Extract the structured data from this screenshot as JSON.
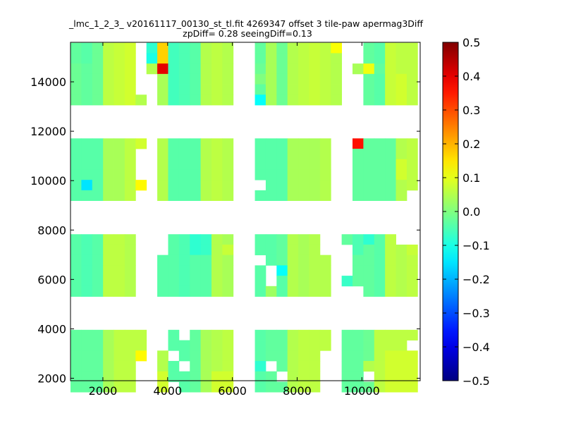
{
  "chart_data": {
    "type": "heatmap",
    "title_line1": "_lmc_1_2_3_ v20161117_00130_st_tl.fit 4269347 offset 3 tile-paw apermag3Diff",
    "title_line2": "zpDiff= 0.28 seeingDiff=0.13",
    "xlabel": "",
    "ylabel": "",
    "xlim": [
      1000,
      11800
    ],
    "ylim": [
      1900,
      15600
    ],
    "xticks": [
      2000,
      4000,
      6000,
      8000,
      10000
    ],
    "xtick_labels": [
      "2000",
      "4000",
      "6000",
      "8000",
      "10000"
    ],
    "yticks": [
      2000,
      4000,
      6000,
      8000,
      10000,
      12000,
      14000
    ],
    "ytick_labels": [
      "2000",
      "4000",
      "6000",
      "8000",
      "10000",
      "12000",
      "14000"
    ],
    "colormap": "jet",
    "colorbar": {
      "vmin": -0.5,
      "vmax": 0.5,
      "ticks": [
        0.5,
        0.4,
        0.3,
        0.2,
        0.1,
        0.0,
        -0.1,
        -0.2,
        -0.3,
        -0.4,
        -0.5
      ],
      "tick_labels": [
        "0.5",
        "0.4",
        "0.3",
        "0.2",
        "0.1",
        "0.0",
        "−0.1",
        "−0.2",
        "−0.3",
        "−0.4",
        "−0.5"
      ]
    },
    "grid": false,
    "cell_size": [
      335,
      420
    ],
    "row_bands": [
      {
        "y_start": 15580,
        "rows": 6
      },
      {
        "y_start": 11710,
        "rows": 6
      },
      {
        "y_start": 7830,
        "rows": 6
      },
      {
        "y_start": 3960,
        "rows": 6
      }
    ],
    "columns_x_start": [
      1000,
      1335,
      1670,
      2005,
      2340,
      2675,
      3010,
      3345,
      3680,
      4015,
      4350,
      4685,
      5020,
      5355,
      5690,
      6025,
      6360,
      6695,
      7030,
      7365,
      7700,
      8035,
      8370,
      8705,
      9040,
      9375,
      9710,
      10045,
      10380,
      10715,
      11050,
      11385
    ],
    "values": [
      [
        [
          -0.03,
          -0.04,
          -0.02,
          0.06,
          0.07,
          0.08,
          null,
          -0.08,
          0.17,
          -0.06,
          -0.05,
          -0.04,
          0.05,
          0.06,
          0.05,
          null,
          null,
          -0.03,
          0.04,
          -0.02,
          0.05,
          0.06,
          0.07,
          0.06,
          0.12,
          null,
          null,
          -0.03,
          -0.04,
          0.07,
          0.06,
          0.06
        ],
        [
          -0.03,
          -0.04,
          -0.02,
          0.06,
          0.07,
          0.08,
          null,
          -0.1,
          0.17,
          -0.06,
          -0.05,
          -0.04,
          0.05,
          0.06,
          0.05,
          null,
          null,
          -0.03,
          0.04,
          -0.02,
          0.05,
          0.06,
          0.07,
          0.06,
          0.05,
          null,
          null,
          -0.03,
          -0.04,
          0.07,
          0.06,
          0.06
        ],
        [
          -0.02,
          -0.03,
          -0.02,
          0.06,
          0.07,
          0.08,
          null,
          0.05,
          0.4,
          -0.06,
          -0.05,
          -0.04,
          0.05,
          0.06,
          0.05,
          null,
          null,
          -0.02,
          0.04,
          -0.02,
          0.05,
          0.06,
          0.07,
          0.06,
          0.05,
          null,
          0.04,
          0.11,
          -0.03,
          0.07,
          0.06,
          0.06
        ],
        [
          -0.02,
          -0.03,
          -0.02,
          0.06,
          0.07,
          0.08,
          null,
          null,
          0.04,
          -0.06,
          -0.05,
          -0.04,
          0.05,
          0.06,
          0.05,
          null,
          null,
          0.0,
          0.04,
          -0.02,
          0.05,
          0.06,
          0.07,
          0.06,
          0.05,
          null,
          null,
          -0.03,
          -0.04,
          0.07,
          0.08,
          0.06
        ],
        [
          -0.02,
          -0.03,
          -0.02,
          0.06,
          0.07,
          0.08,
          null,
          null,
          0.04,
          -0.06,
          -0.05,
          -0.04,
          0.05,
          0.06,
          0.05,
          null,
          null,
          -0.03,
          0.04,
          -0.02,
          0.05,
          0.06,
          0.07,
          0.06,
          0.05,
          null,
          null,
          -0.03,
          -0.04,
          0.07,
          0.08,
          0.06
        ],
        [
          -0.02,
          -0.03,
          -0.02,
          0.06,
          0.07,
          0.08,
          0.05,
          null,
          0.04,
          -0.06,
          -0.05,
          -0.04,
          0.05,
          0.06,
          0.05,
          null,
          null,
          -0.12,
          0.04,
          -0.02,
          0.05,
          0.06,
          0.07,
          0.06,
          0.05,
          null,
          null,
          -0.03,
          -0.04,
          0.07,
          0.08,
          0.06
        ]
      ],
      [
        [
          -0.04,
          -0.04,
          -0.04,
          0.04,
          0.04,
          0.06,
          0.08,
          null,
          0.05,
          -0.04,
          -0.04,
          -0.04,
          0.05,
          0.06,
          0.05,
          null,
          null,
          -0.04,
          -0.04,
          -0.04,
          0.04,
          0.04,
          0.04,
          0.05,
          null,
          null,
          0.36,
          -0.03,
          -0.03,
          -0.03,
          0.05,
          0.06
        ],
        [
          -0.04,
          -0.04,
          -0.04,
          0.04,
          0.04,
          0.06,
          null,
          null,
          0.05,
          -0.04,
          -0.04,
          -0.04,
          0.05,
          0.06,
          0.05,
          null,
          null,
          -0.04,
          -0.04,
          -0.04,
          0.04,
          0.04,
          0.04,
          0.05,
          null,
          null,
          -0.03,
          -0.03,
          -0.03,
          -0.03,
          0.05,
          0.06
        ],
        [
          -0.04,
          -0.04,
          -0.04,
          0.04,
          0.04,
          0.06,
          null,
          null,
          0.05,
          -0.04,
          -0.04,
          -0.04,
          0.05,
          0.06,
          0.05,
          null,
          null,
          -0.04,
          -0.04,
          -0.04,
          0.04,
          0.04,
          0.04,
          0.05,
          null,
          null,
          -0.03,
          -0.03,
          -0.03,
          -0.03,
          0.08,
          0.06
        ],
        [
          -0.04,
          -0.04,
          -0.04,
          0.04,
          0.04,
          0.06,
          null,
          null,
          0.05,
          -0.04,
          -0.04,
          -0.04,
          0.05,
          0.06,
          0.05,
          null,
          null,
          -0.04,
          -0.04,
          -0.04,
          0.04,
          0.04,
          0.04,
          0.05,
          null,
          null,
          -0.03,
          -0.03,
          -0.03,
          -0.03,
          0.08,
          0.06
        ],
        [
          -0.04,
          -0.15,
          -0.04,
          0.04,
          0.04,
          0.06,
          0.13,
          null,
          0.05,
          -0.04,
          -0.04,
          -0.04,
          0.05,
          0.06,
          0.05,
          null,
          null,
          null,
          -0.04,
          -0.04,
          0.04,
          0.04,
          0.04,
          0.05,
          null,
          null,
          -0.03,
          -0.03,
          -0.03,
          -0.03,
          0.05,
          0.06
        ],
        [
          -0.04,
          -0.04,
          -0.04,
          0.04,
          0.04,
          0.06,
          null,
          null,
          0.05,
          -0.04,
          -0.04,
          -0.04,
          0.05,
          0.06,
          0.05,
          null,
          null,
          -0.04,
          -0.04,
          -0.04,
          0.04,
          0.04,
          0.04,
          0.05,
          null,
          null,
          -0.03,
          -0.03,
          -0.03,
          -0.03,
          0.05,
          null
        ]
      ],
      [
        [
          -0.04,
          -0.05,
          -0.04,
          0.06,
          0.06,
          0.05,
          null,
          null,
          null,
          -0.04,
          -0.05,
          -0.08,
          -0.07,
          0.05,
          0.04,
          null,
          null,
          -0.04,
          -0.04,
          -0.03,
          0.05,
          0.04,
          0.05,
          null,
          null,
          -0.03,
          -0.05,
          -0.08,
          -0.04,
          0.06,
          null,
          null
        ],
        [
          -0.04,
          -0.05,
          -0.04,
          0.06,
          0.06,
          0.05,
          null,
          null,
          null,
          -0.04,
          -0.05,
          -0.08,
          -0.07,
          0.05,
          0.07,
          null,
          null,
          -0.04,
          -0.04,
          -0.03,
          0.05,
          0.04,
          0.05,
          null,
          null,
          null,
          -0.05,
          -0.03,
          -0.04,
          0.06,
          0.05,
          0.07
        ],
        [
          -0.04,
          -0.05,
          -0.04,
          0.06,
          0.06,
          0.05,
          null,
          null,
          -0.04,
          -0.04,
          -0.05,
          -0.04,
          -0.04,
          0.05,
          0.04,
          null,
          null,
          null,
          -0.04,
          -0.03,
          0.05,
          0.04,
          0.05,
          0.05,
          null,
          null,
          -0.03,
          -0.03,
          -0.04,
          0.06,
          0.05,
          0.06
        ],
        [
          -0.04,
          -0.05,
          -0.04,
          0.06,
          0.06,
          0.05,
          null,
          null,
          -0.04,
          -0.04,
          -0.05,
          -0.04,
          -0.04,
          0.05,
          0.04,
          null,
          null,
          -0.04,
          null,
          -0.12,
          0.05,
          0.04,
          0.05,
          0.05,
          null,
          null,
          -0.03,
          -0.03,
          -0.04,
          0.06,
          0.05,
          0.06
        ],
        [
          -0.04,
          -0.05,
          -0.04,
          0.06,
          0.06,
          0.05,
          null,
          null,
          -0.04,
          -0.04,
          -0.05,
          -0.04,
          -0.04,
          0.05,
          0.04,
          null,
          null,
          -0.04,
          null,
          -0.04,
          0.05,
          0.04,
          0.05,
          0.05,
          null,
          -0.07,
          -0.03,
          -0.03,
          -0.04,
          0.06,
          0.05,
          0.06
        ],
        [
          -0.04,
          -0.05,
          -0.04,
          0.06,
          0.06,
          0.05,
          null,
          null,
          -0.04,
          -0.04,
          -0.05,
          -0.04,
          -0.04,
          0.05,
          0.04,
          null,
          null,
          -0.04,
          0.03,
          -0.04,
          0.05,
          0.04,
          0.05,
          0.05,
          null,
          null,
          null,
          -0.03,
          -0.04,
          0.06,
          0.05,
          0.06
        ]
      ],
      [
        [
          -0.03,
          -0.03,
          -0.03,
          0.04,
          0.06,
          0.06,
          0.06,
          null,
          null,
          -0.04,
          null,
          -0.03,
          0.04,
          0.05,
          0.06,
          null,
          null,
          -0.04,
          -0.03,
          -0.03,
          0.05,
          0.06,
          0.06,
          0.06,
          null,
          -0.03,
          -0.03,
          -0.02,
          0.06,
          0.06,
          0.06,
          0.06
        ],
        [
          -0.03,
          -0.03,
          -0.03,
          0.04,
          0.06,
          0.06,
          0.06,
          null,
          null,
          -0.04,
          -0.04,
          -0.03,
          0.04,
          0.05,
          0.06,
          null,
          null,
          -0.04,
          -0.03,
          -0.03,
          0.05,
          0.06,
          0.06,
          0.06,
          null,
          -0.03,
          -0.03,
          -0.02,
          0.06,
          0.06,
          0.06,
          null
        ],
        [
          -0.03,
          -0.03,
          -0.03,
          0.04,
          0.06,
          0.06,
          0.13,
          null,
          0.05,
          null,
          -0.04,
          -0.03,
          0.04,
          0.05,
          0.06,
          null,
          null,
          -0.04,
          -0.03,
          -0.03,
          0.05,
          0.06,
          0.06,
          null,
          null,
          -0.03,
          -0.03,
          -0.02,
          0.06,
          0.08,
          0.08,
          0.08
        ],
        [
          -0.03,
          -0.03,
          -0.03,
          0.04,
          0.06,
          0.06,
          null,
          null,
          0.05,
          -0.04,
          null,
          -0.03,
          0.04,
          0.05,
          0.06,
          null,
          null,
          -0.08,
          null,
          -0.03,
          0.05,
          0.06,
          0.06,
          null,
          null,
          -0.03,
          -0.03,
          0.05,
          0.06,
          0.08,
          0.08,
          0.08
        ],
        [
          -0.03,
          -0.03,
          -0.03,
          0.04,
          0.06,
          0.06,
          null,
          null,
          0.08,
          -0.04,
          -0.04,
          -0.03,
          0.04,
          0.08,
          0.08,
          null,
          null,
          -0.04,
          -0.03,
          null,
          0.05,
          0.06,
          0.06,
          null,
          null,
          -0.03,
          -0.03,
          null,
          0.06,
          0.08,
          0.08,
          0.08
        ],
        [
          -0.03,
          -0.03,
          -0.03,
          0.04,
          0.06,
          0.06,
          null,
          null,
          0.08,
          null,
          -0.04,
          -0.03,
          0.04,
          0.08,
          0.08,
          null,
          null,
          -0.04,
          -0.03,
          -0.03,
          0.05,
          0.06,
          0.06,
          null,
          null,
          -0.03,
          -0.03,
          -0.02,
          0.06,
          0.08,
          0.08,
          0.08
        ]
      ]
    ]
  }
}
